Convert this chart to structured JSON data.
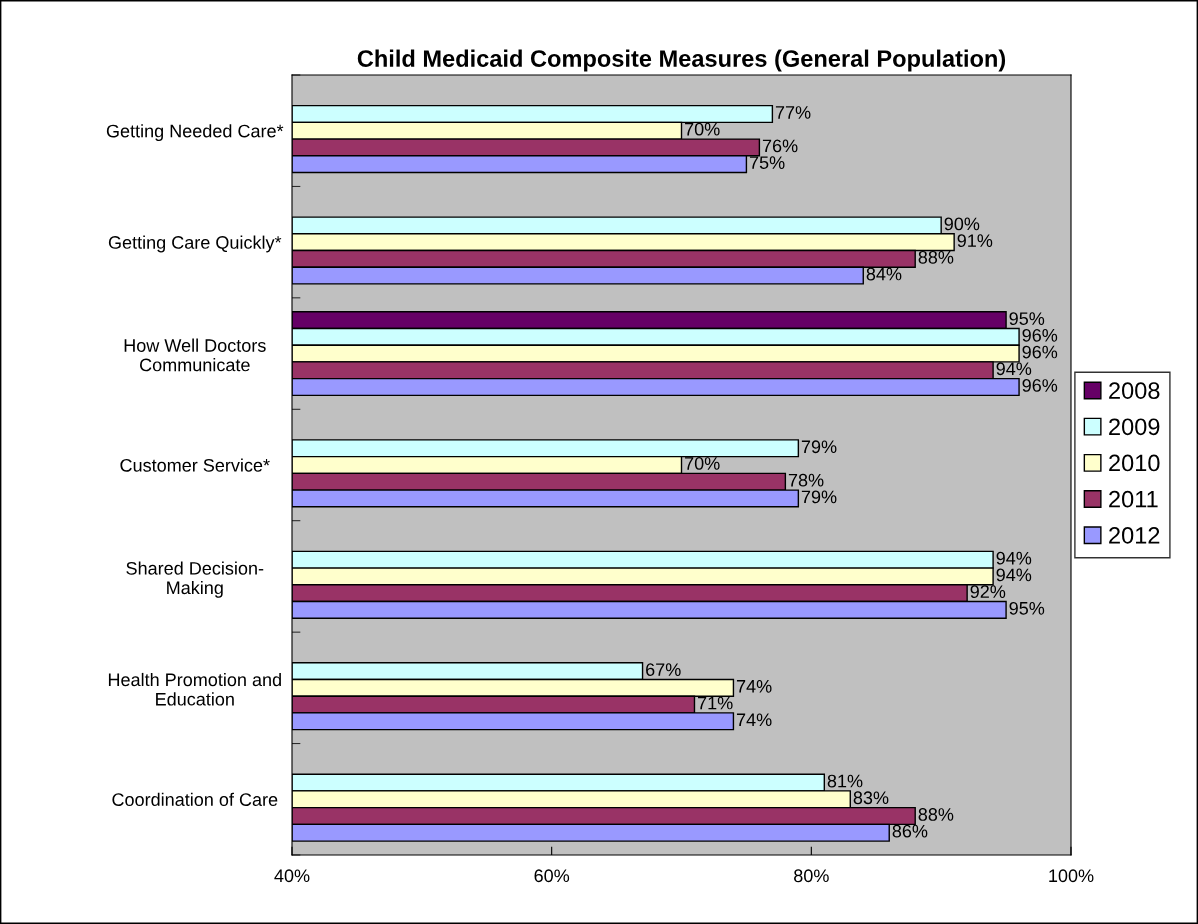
{
  "chart_data": {
    "type": "bar",
    "orientation": "horizontal",
    "title": "Child Medicaid Composite Measures (General Population)",
    "categories": [
      "Getting Needed Care*",
      "Getting Care Quickly*",
      "How Well Doctors\nCommunicate",
      "Customer Service*",
      "Shared Decision-\nMaking",
      "Health Promotion and\nEducation",
      "Coordination of Care"
    ],
    "series": [
      {
        "name": "2008",
        "color": "#660066",
        "values": [
          null,
          null,
          95,
          null,
          null,
          null,
          null
        ],
        "value_labels": [
          null,
          null,
          "95%",
          null,
          null,
          null,
          null
        ]
      },
      {
        "name": "2009",
        "color": "#ccffff",
        "values": [
          77,
          90,
          96,
          79,
          94,
          67,
          81
        ],
        "value_labels": [
          "77%",
          "90%",
          "96%",
          "79%",
          "94%",
          "67%",
          "81%"
        ]
      },
      {
        "name": "2010",
        "color": "#ffffcc",
        "values": [
          70,
          91,
          96,
          70,
          94,
          74,
          83
        ],
        "value_labels": [
          "70%",
          "91%",
          "96%",
          "70%",
          "94%",
          "74%",
          "83%"
        ]
      },
      {
        "name": "2011",
        "color": "#993366",
        "values": [
          76,
          88,
          94,
          78,
          92,
          71,
          88
        ],
        "value_labels": [
          "76%",
          "88%",
          "94%",
          "78%",
          "92%",
          "71%",
          "88%"
        ]
      },
      {
        "name": "2012",
        "color": "#9999ff",
        "values": [
          75,
          84,
          96,
          79,
          95,
          74,
          86
        ],
        "value_labels": [
          "75%",
          "84%",
          "96%",
          "79%",
          "95%",
          "74%",
          "86%"
        ]
      }
    ],
    "xlim": [
      40,
      100
    ],
    "xticks": [
      {
        "value": 40,
        "label": "40%"
      },
      {
        "value": 60,
        "label": "60%"
      },
      {
        "value": 80,
        "label": "80%"
      },
      {
        "value": 100,
        "label": "100%"
      }
    ],
    "grid": false,
    "legend": "right"
  }
}
